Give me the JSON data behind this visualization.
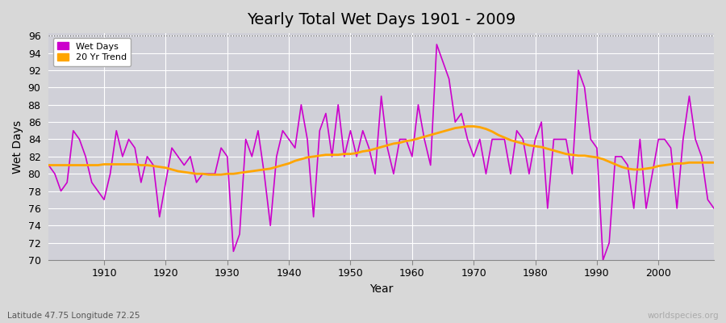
{
  "title": "Yearly Total Wet Days 1901 - 2009",
  "xlabel": "Year",
  "ylabel": "Wet Days",
  "subtitle_left": "Latitude 47.75 Longitude 72.25",
  "subtitle_right": "worldspecies.org",
  "ylim_min": 70,
  "ylim_max": 96,
  "yticks": [
    70,
    72,
    74,
    76,
    78,
    80,
    82,
    84,
    86,
    88,
    90,
    92,
    94,
    96
  ],
  "wet_days_color": "#cc00cc",
  "trend_color": "#FFA500",
  "fig_bg_color": "#d8d8d8",
  "plot_bg_color": "#d0d0d8",
  "legend_labels": [
    "Wet Days",
    "20 Yr Trend"
  ],
  "years": [
    1901,
    1902,
    1903,
    1904,
    1905,
    1906,
    1907,
    1908,
    1909,
    1910,
    1911,
    1912,
    1913,
    1914,
    1915,
    1916,
    1917,
    1918,
    1919,
    1920,
    1921,
    1922,
    1923,
    1924,
    1925,
    1926,
    1927,
    1928,
    1929,
    1930,
    1931,
    1932,
    1933,
    1934,
    1935,
    1936,
    1937,
    1938,
    1939,
    1940,
    1941,
    1942,
    1943,
    1944,
    1945,
    1946,
    1947,
    1948,
    1949,
    1950,
    1951,
    1952,
    1953,
    1954,
    1955,
    1956,
    1957,
    1958,
    1959,
    1960,
    1961,
    1962,
    1963,
    1964,
    1965,
    1966,
    1967,
    1968,
    1969,
    1970,
    1971,
    1972,
    1973,
    1974,
    1975,
    1976,
    1977,
    1978,
    1979,
    1980,
    1981,
    1982,
    1983,
    1984,
    1985,
    1986,
    1987,
    1988,
    1989,
    1990,
    1991,
    1992,
    1993,
    1994,
    1995,
    1996,
    1997,
    1998,
    1999,
    2000,
    2001,
    2002,
    2003,
    2004,
    2005,
    2006,
    2007,
    2008,
    2009
  ],
  "wet_days": [
    81,
    80,
    78,
    79,
    85,
    84,
    82,
    79,
    78,
    77,
    80,
    85,
    82,
    84,
    83,
    79,
    82,
    81,
    75,
    79,
    83,
    82,
    81,
    82,
    79,
    80,
    80,
    80,
    83,
    82,
    71,
    73,
    84,
    82,
    85,
    80,
    74,
    82,
    85,
    84,
    83,
    88,
    84,
    75,
    85,
    87,
    82,
    88,
    82,
    85,
    82,
    85,
    83,
    80,
    89,
    83,
    80,
    84,
    84,
    82,
    88,
    84,
    81,
    95,
    93,
    91,
    86,
    87,
    84,
    82,
    84,
    80,
    84,
    84,
    84,
    80,
    85,
    84,
    80,
    84,
    86,
    76,
    84,
    84,
    84,
    80,
    92,
    90,
    84,
    83,
    70,
    72,
    82,
    82,
    81,
    76,
    84,
    76,
    80,
    84,
    84,
    83,
    76,
    84,
    89,
    84,
    82,
    77,
    76
  ],
  "trend_values_by_year": {
    "1901": 81.0,
    "1902": 81.0,
    "1903": 81.0,
    "1904": 81.0,
    "1905": 81.0,
    "1906": 81.0,
    "1907": 81.0,
    "1908": 81.0,
    "1909": 81.0,
    "1910": 81.1,
    "1911": 81.1,
    "1912": 81.1,
    "1913": 81.1,
    "1914": 81.1,
    "1915": 81.1,
    "1916": 81.0,
    "1917": 81.0,
    "1918": 80.9,
    "1919": 80.8,
    "1920": 80.7,
    "1921": 80.5,
    "1922": 80.3,
    "1923": 80.2,
    "1924": 80.1,
    "1925": 80.0,
    "1926": 80.0,
    "1927": 79.9,
    "1928": 79.9,
    "1929": 79.9,
    "1930": 80.0,
    "1931": 80.0,
    "1932": 80.1,
    "1933": 80.2,
    "1934": 80.3,
    "1935": 80.4,
    "1936": 80.5,
    "1937": 80.6,
    "1938": 80.8,
    "1939": 81.0,
    "1940": 81.2,
    "1941": 81.5,
    "1942": 81.7,
    "1943": 81.9,
    "1944": 82.0,
    "1945": 82.1,
    "1946": 82.2,
    "1947": 82.2,
    "1948": 82.2,
    "1949": 82.3,
    "1950": 82.3,
    "1951": 82.4,
    "1952": 82.6,
    "1953": 82.7,
    "1954": 82.9,
    "1955": 83.1,
    "1956": 83.3,
    "1957": 83.5,
    "1958": 83.6,
    "1959": 83.8,
    "1960": 83.9,
    "1961": 84.1,
    "1962": 84.3,
    "1963": 84.5,
    "1964": 84.7,
    "1965": 84.9,
    "1966": 85.1,
    "1967": 85.3,
    "1968": 85.4,
    "1969": 85.5,
    "1970": 85.5,
    "1971": 85.4,
    "1972": 85.2,
    "1973": 84.9,
    "1974": 84.5,
    "1975": 84.2,
    "1976": 83.9,
    "1977": 83.7,
    "1978": 83.5,
    "1979": 83.3,
    "1980": 83.2,
    "1981": 83.1,
    "1982": 82.9,
    "1983": 82.7,
    "1984": 82.5,
    "1985": 82.3,
    "1986": 82.2,
    "1987": 82.1,
    "1988": 82.1,
    "1989": 82.0,
    "1990": 81.9,
    "1991": 81.7,
    "1992": 81.4,
    "1993": 81.1,
    "1994": 80.8,
    "1995": 80.6,
    "1996": 80.5,
    "1997": 80.5,
    "1998": 80.6,
    "1999": 80.7,
    "2000": 80.9,
    "2001": 81.0,
    "2002": 81.1,
    "2003": 81.2,
    "2004": 81.2,
    "2005": 81.3,
    "2006": 81.3,
    "2007": 81.3,
    "2008": 81.3,
    "2009": 81.3
  }
}
